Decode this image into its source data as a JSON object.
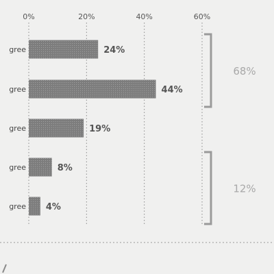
{
  "chart_data": {
    "type": "bar",
    "orientation": "horizontal",
    "categories": [
      "gree",
      "gree",
      "gree",
      "gree",
      "gree"
    ],
    "values": [
      24,
      44,
      19,
      8,
      4
    ],
    "value_labels": [
      "24%",
      "44%",
      "19%",
      "8%",
      "4%"
    ],
    "xlim": [
      0,
      60
    ],
    "xticks": [
      0,
      20,
      40,
      60
    ],
    "xtick_labels": [
      "0%",
      "20%",
      "40%",
      "60%"
    ],
    "grid": "vertical dotted",
    "bar_color": "#7d7d7d",
    "groups": [
      {
        "label": "68%",
        "from": 0,
        "to": 1
      },
      {
        "label": "12%",
        "from": 3,
        "to": 4
      }
    ]
  }
}
